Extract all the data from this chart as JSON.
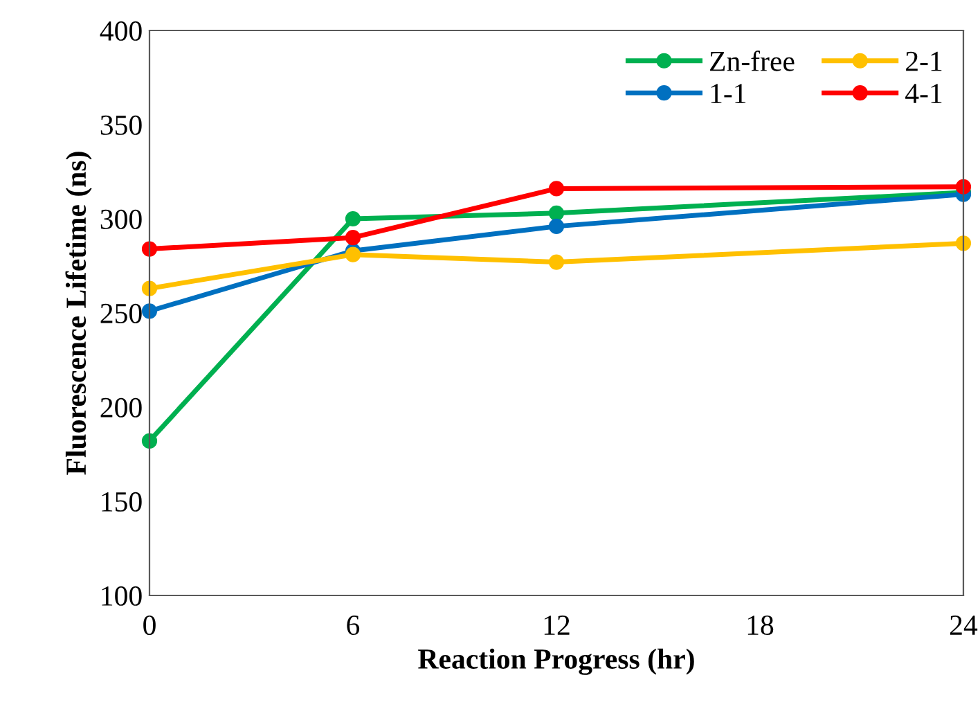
{
  "chart_data": {
    "type": "line",
    "xlabel": "Reaction Progress (hr)",
    "ylabel": "Fluorescence Lifetime (ns)",
    "x": [
      0,
      6,
      12,
      24
    ],
    "xlim": [
      0,
      24
    ],
    "xticks": [
      0,
      6,
      12,
      18,
      24
    ],
    "ylim": [
      100,
      400
    ],
    "yticks": [
      100,
      150,
      200,
      250,
      300,
      350,
      400
    ],
    "marker": "circle",
    "line_style": "solid",
    "grid": false,
    "legend": "top right",
    "series": [
      {
        "name": "Zn-free",
        "color": "#00b050",
        "values": [
          182,
          300,
          303,
          314
        ]
      },
      {
        "name": "1-1",
        "color": "#0070c0",
        "values": [
          251,
          283,
          296,
          313
        ]
      },
      {
        "name": "2-1",
        "color": "#ffc000",
        "values": [
          263,
          281,
          277,
          287
        ]
      },
      {
        "name": "4-1",
        "color": "#ff0000",
        "values": [
          284,
          290,
          316,
          317
        ]
      }
    ]
  }
}
